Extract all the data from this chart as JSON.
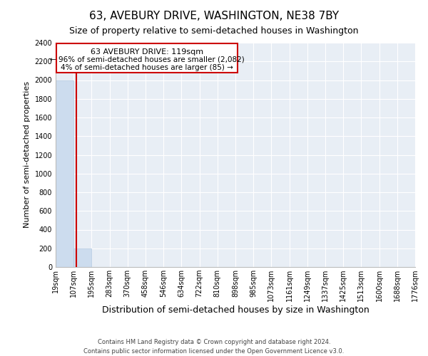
{
  "title": "63, AVEBURY DRIVE, WASHINGTON, NE38 7BY",
  "subtitle": "Size of property relative to semi-detached houses in Washington",
  "xlabel": "Distribution of semi-detached houses by size in Washington",
  "ylabel": "Number of semi-detached properties",
  "bar_values": [
    2000,
    200,
    0,
    0,
    0,
    0,
    0,
    0,
    0,
    0,
    0,
    0,
    0,
    0,
    0,
    0,
    0,
    0,
    0,
    0
  ],
  "bar_labels": [
    "19sqm",
    "107sqm",
    "195sqm",
    "283sqm",
    "370sqm",
    "458sqm",
    "546sqm",
    "634sqm",
    "722sqm",
    "810sqm",
    "898sqm",
    "985sqm",
    "1073sqm",
    "1161sqm",
    "1249sqm",
    "1337sqm",
    "1425sqm",
    "1513sqm",
    "1600sqm",
    "1688sqm",
    "1776sqm"
  ],
  "bar_color": "#ccdcee",
  "bar_edge_color": "#b0c8e0",
  "ylim": [
    0,
    2400
  ],
  "yticks": [
    0,
    200,
    400,
    600,
    800,
    1000,
    1200,
    1400,
    1600,
    1800,
    2000,
    2200,
    2400
  ],
  "property_line_x": 0.635,
  "property_line_color": "#cc0000",
  "ann_line1": "63 AVEBURY DRIVE: 119sqm",
  "ann_line2": "← 96% of semi-detached houses are smaller (2,082)",
  "ann_line3": "4% of semi-detached houses are larger (85) →",
  "annotation_box_color": "#ffffff",
  "annotation_box_edge": "#cc0000",
  "footer_line1": "Contains HM Land Registry data © Crown copyright and database right 2024.",
  "footer_line2": "Contains public sector information licensed under the Open Government Licence v3.0.",
  "fig_bg_color": "#ffffff",
  "plot_bg_color": "#e8eef5",
  "grid_color": "#ffffff",
  "title_fontsize": 11,
  "subtitle_fontsize": 9,
  "ylabel_fontsize": 8,
  "xlabel_fontsize": 9,
  "tick_fontsize": 7,
  "ann_fontsize": 8,
  "footer_fontsize": 6
}
